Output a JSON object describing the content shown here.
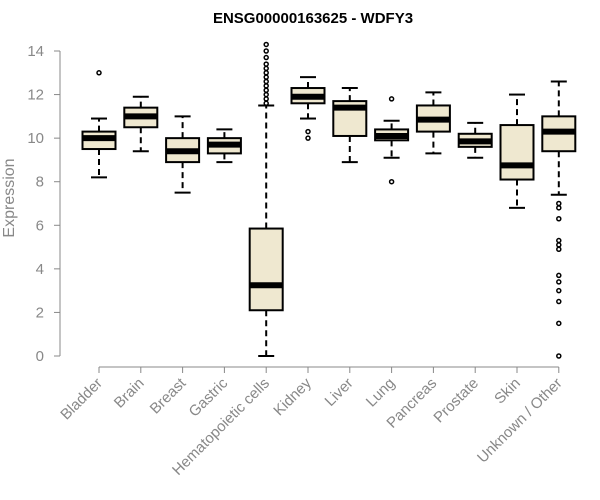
{
  "chart_data": {
    "type": "boxplot",
    "title": "ENSG00000163625 - WDFY3",
    "xlabel": "",
    "ylabel": "Expression",
    "ylim": [
      0,
      14
    ],
    "yticks": [
      "0",
      "2",
      "4",
      "6",
      "8",
      "10",
      "12",
      "14"
    ],
    "colors": {
      "box_fill": "#efe8d0",
      "stroke": "#000000",
      "axis_text": "#888888"
    },
    "categories": [
      "Bladder",
      "Brain",
      "Breast",
      "Gastric",
      "Hematopoietic cells",
      "Kidney",
      "Liver",
      "Lung",
      "Pancreas",
      "Prostate",
      "Skin",
      "Unknown / Other"
    ],
    "series": [
      {
        "name": "Bladder",
        "whisker_low": 8.2,
        "q1": 9.5,
        "median": 10.0,
        "q3": 10.3,
        "whisker_high": 10.9,
        "outliers": [
          13.0
        ]
      },
      {
        "name": "Brain",
        "whisker_low": 9.4,
        "q1": 10.5,
        "median": 11.0,
        "q3": 11.4,
        "whisker_high": 11.9,
        "outliers": []
      },
      {
        "name": "Breast",
        "whisker_low": 7.5,
        "q1": 8.9,
        "median": 9.4,
        "q3": 10.0,
        "whisker_high": 11.0,
        "outliers": []
      },
      {
        "name": "Gastric",
        "whisker_low": 8.9,
        "q1": 9.3,
        "median": 9.7,
        "q3": 10.0,
        "whisker_high": 10.4,
        "outliers": []
      },
      {
        "name": "Hematopoietic cells",
        "whisker_low": 0.0,
        "q1": 2.1,
        "median": 3.25,
        "q3": 5.85,
        "whisker_high": 11.5,
        "outliers": [
          11.6,
          11.8,
          12.0,
          12.2,
          12.4,
          12.6,
          12.8,
          13.0,
          13.2,
          13.4,
          13.7,
          14.0,
          14.3
        ]
      },
      {
        "name": "Kidney",
        "whisker_low": 10.9,
        "q1": 11.6,
        "median": 11.9,
        "q3": 12.3,
        "whisker_high": 12.8,
        "outliers": [
          10.3,
          10.0
        ]
      },
      {
        "name": "Liver",
        "whisker_low": 8.9,
        "q1": 10.1,
        "median": 11.4,
        "q3": 11.7,
        "whisker_high": 12.3,
        "outliers": []
      },
      {
        "name": "Lung",
        "whisker_low": 9.1,
        "q1": 9.9,
        "median": 10.1,
        "q3": 10.4,
        "whisker_high": 10.8,
        "outliers": [
          11.8,
          8.0
        ]
      },
      {
        "name": "Pancreas",
        "whisker_low": 9.3,
        "q1": 10.3,
        "median": 10.85,
        "q3": 11.5,
        "whisker_high": 12.1,
        "outliers": []
      },
      {
        "name": "Prostate",
        "whisker_low": 9.1,
        "q1": 9.6,
        "median": 9.85,
        "q3": 10.2,
        "whisker_high": 10.7,
        "outliers": []
      },
      {
        "name": "Skin",
        "whisker_low": 6.8,
        "q1": 8.1,
        "median": 8.75,
        "q3": 10.6,
        "whisker_high": 12.0,
        "outliers": []
      },
      {
        "name": "Unknown / Other",
        "whisker_low": 7.4,
        "q1": 9.4,
        "median": 10.3,
        "q3": 11.0,
        "whisker_high": 12.6,
        "outliers": [
          7.0,
          6.8,
          6.3,
          5.3,
          5.1,
          4.9,
          3.7,
          3.4,
          3.0,
          2.5,
          1.5,
          0.0
        ]
      }
    ]
  }
}
